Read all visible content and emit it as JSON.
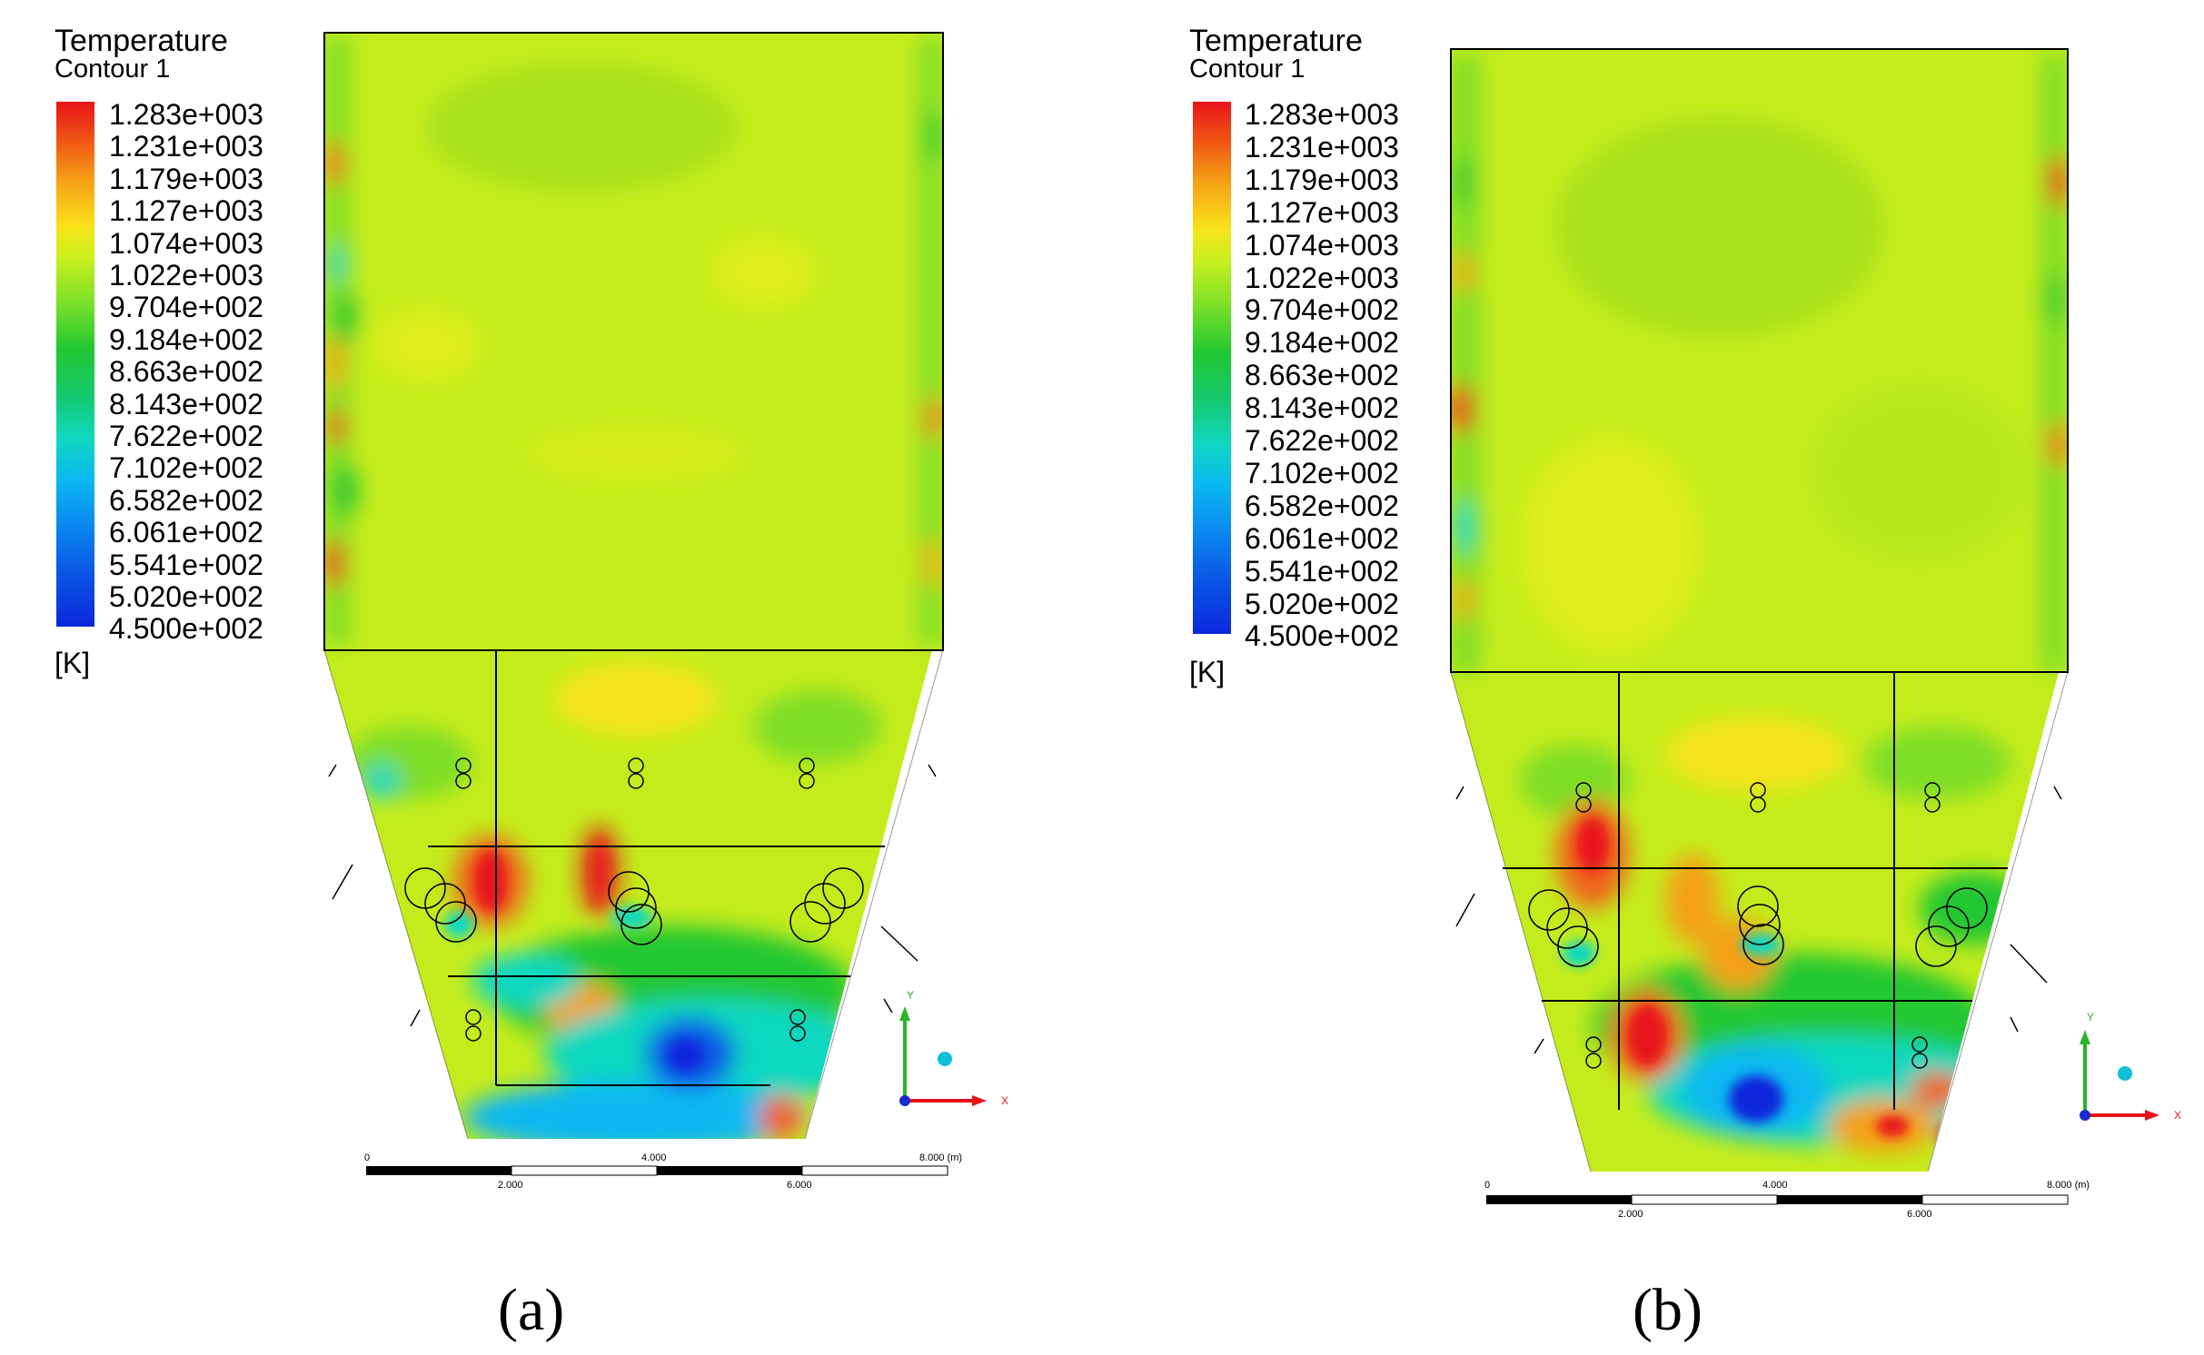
{
  "panels": [
    {
      "legend_title": "Temperature",
      "legend_subtitle": "Contour 1",
      "colorbar_ticks": [
        "1.283e+003",
        "1.231e+003",
        "1.179e+003",
        "1.127e+003",
        "1.074e+003",
        "1.022e+003",
        "9.704e+002",
        "9.184e+002",
        "8.663e+002",
        "8.143e+002",
        "7.622e+002",
        "7.102e+002",
        "6.582e+002",
        "6.061e+002",
        "5.541e+002",
        "5.020e+002",
        "4.500e+002"
      ],
      "unit": "[K]",
      "scale_labels": [
        "0",
        "2.000",
        "4.000",
        "6.000",
        "8.000 (m)"
      ],
      "axis_labels": {
        "y": "Y",
        "x": "X"
      },
      "caption": "(a)"
    },
    {
      "legend_title": "Temperature",
      "legend_subtitle": "Contour 1",
      "colorbar_ticks": [
        "1.283e+003",
        "1.231e+003",
        "1.179e+003",
        "1.127e+003",
        "1.074e+003",
        "1.022e+003",
        "9.704e+002",
        "9.184e+002",
        "8.663e+002",
        "8.143e+002",
        "7.622e+002",
        "7.102e+002",
        "6.582e+002",
        "6.061e+002",
        "5.541e+002",
        "5.020e+002",
        "4.500e+002"
      ],
      "unit": "[K]",
      "scale_labels": [
        "0",
        "2.000",
        "4.000",
        "6.000",
        "8.000 (m)"
      ],
      "axis_labels": {
        "y": "Y",
        "x": "X"
      },
      "caption": "(b)"
    }
  ],
  "colors": {
    "red": "#e8131a",
    "orange": "#f6a016",
    "yellow": "#f8e41a",
    "yellow_green": "#c8f01e",
    "green": "#22c832",
    "cyan": "#10d8c0",
    "blue": "#0a5ae6",
    "dark_blue": "#0a28dc"
  }
}
